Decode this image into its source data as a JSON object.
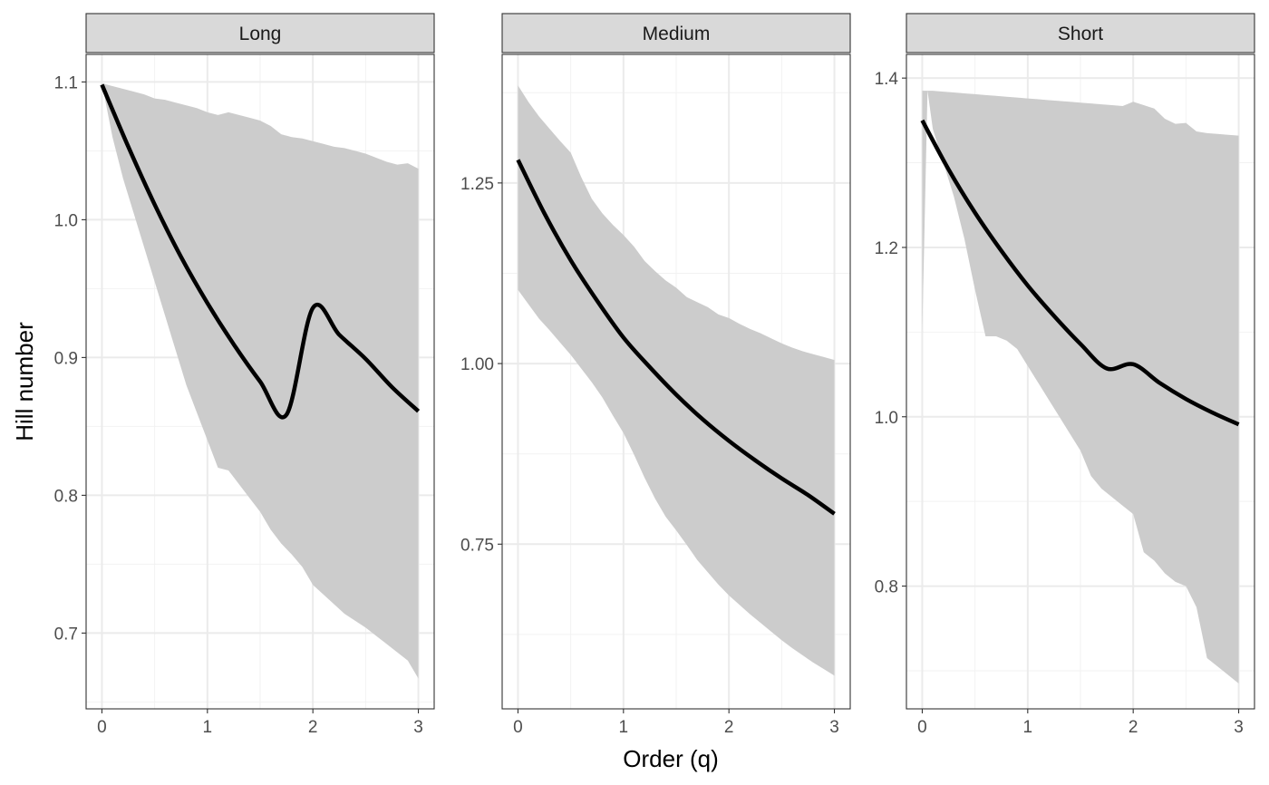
{
  "chart_data": {
    "type": "line",
    "xlabel": "Order (q)",
    "ylabel": "Hill number",
    "x_ticks": [
      0,
      1,
      2,
      3
    ],
    "xlim": [
      -0.15,
      3.15
    ],
    "colors": {
      "line": "#000000",
      "ribbon": "#cccccc",
      "grid_major": "#ebebeb",
      "grid_minor": "#f2f2f2",
      "strip_bg": "#d9d9d9",
      "border": "#333333"
    },
    "panels": [
      {
        "name": "Long",
        "ylim": [
          0.645,
          1.12
        ],
        "y_ticks": [
          0.7,
          0.8,
          0.9,
          1.0,
          1.1
        ],
        "y_tick_labels": [
          "0.7",
          "0.8",
          "0.9",
          "1.0",
          "1.1"
        ],
        "y_minor": [
          0.65,
          0.75,
          0.85,
          0.95,
          1.05
        ],
        "series": [
          {
            "name": "Hill number",
            "x": [
              0,
              0.25,
              0.5,
              0.75,
              1,
              1.25,
              1.5,
              1.75,
              2,
              2.25,
              2.5,
              2.75,
              3
            ],
            "y": [
              1.098,
              1.053,
              1.011,
              0.973,
              0.9395,
              0.9095,
              0.8825,
              0.8585,
              0.936,
              0.9165,
              0.899,
              0.8785,
              0.861
            ]
          }
        ],
        "ribbon": {
          "x": [
            0,
            0.1,
            0.2,
            0.3,
            0.4,
            0.5,
            0.6,
            0.7,
            0.8,
            0.9,
            1.0,
            1.1,
            1.2,
            1.3,
            1.4,
            1.5,
            1.6,
            1.7,
            1.8,
            1.9,
            2.0,
            2.1,
            2.2,
            2.3,
            2.4,
            2.5,
            2.6,
            2.7,
            2.8,
            2.9,
            3.0
          ],
          "upper": [
            1.099,
            1.097,
            1.095,
            1.093,
            1.091,
            1.088,
            1.087,
            1.085,
            1.083,
            1.081,
            1.078,
            1.076,
            1.078,
            1.076,
            1.074,
            1.072,
            1.068,
            1.062,
            1.06,
            1.059,
            1.057,
            1.055,
            1.053,
            1.052,
            1.05,
            1.048,
            1.045,
            1.042,
            1.04,
            1.041,
            1.037
          ],
          "lower": [
            1.099,
            1.06,
            1.03,
            1.005,
            0.98,
            0.955,
            0.93,
            0.905,
            0.88,
            0.86,
            0.84,
            0.82,
            0.818,
            0.808,
            0.798,
            0.788,
            0.775,
            0.765,
            0.757,
            0.748,
            0.735,
            0.728,
            0.721,
            0.714,
            0.709,
            0.704,
            0.698,
            0.692,
            0.686,
            0.68,
            0.667
          ]
        }
      },
      {
        "name": "Medium",
        "ylim": [
          0.522,
          1.428
        ],
        "y_ticks": [
          0.75,
          1.0,
          1.25
        ],
        "y_tick_labels": [
          "0.75",
          "1.00",
          "1.25"
        ],
        "y_minor": [
          0.625,
          0.875,
          1.125,
          1.375
        ],
        "series": [
          {
            "name": "Hill number",
            "x": [
              0,
              0.25,
              0.5,
              0.75,
              1,
              1.25,
              1.5,
              1.75,
              2,
              2.25,
              2.5,
              2.75,
              3
            ],
            "y": [
              1.282,
              1.208,
              1.143,
              1.087,
              1.036,
              0.995,
              0.957,
              0.923,
              0.893,
              0.866,
              0.841,
              0.818,
              0.792
            ]
          }
        ],
        "ribbon": {
          "x": [
            0,
            0.1,
            0.2,
            0.3,
            0.4,
            0.5,
            0.6,
            0.7,
            0.8,
            0.9,
            1.0,
            1.1,
            1.2,
            1.3,
            1.4,
            1.5,
            1.6,
            1.7,
            1.8,
            1.9,
            2.0,
            2.1,
            2.2,
            2.3,
            2.4,
            2.5,
            2.6,
            2.7,
            2.8,
            2.9,
            3.0
          ],
          "upper": [
            1.385,
            1.362,
            1.342,
            1.325,
            1.308,
            1.292,
            1.258,
            1.228,
            1.208,
            1.192,
            1.178,
            1.162,
            1.142,
            1.128,
            1.115,
            1.105,
            1.092,
            1.085,
            1.078,
            1.068,
            1.063,
            1.055,
            1.048,
            1.042,
            1.035,
            1.028,
            1.022,
            1.017,
            1.013,
            1.009,
            1.005
          ],
          "lower": [
            1.102,
            1.082,
            1.062,
            1.046,
            1.029,
            1.012,
            0.993,
            0.974,
            0.953,
            0.928,
            0.904,
            0.874,
            0.842,
            0.813,
            0.788,
            0.769,
            0.749,
            0.728,
            0.711,
            0.694,
            0.679,
            0.666,
            0.653,
            0.641,
            0.629,
            0.617,
            0.606,
            0.596,
            0.586,
            0.577,
            0.568
          ]
        }
      },
      {
        "name": "Short",
        "ylim": [
          0.655,
          1.428
        ],
        "y_ticks": [
          0.8,
          1.0,
          1.2,
          1.4
        ],
        "y_tick_labels": [
          "0.8",
          "1.0",
          "1.2",
          "1.4"
        ],
        "y_minor": [
          0.7,
          0.9,
          1.1,
          1.3
        ],
        "series": [
          {
            "name": "Hill number",
            "x": [
              0,
              0.25,
              0.5,
              0.75,
              1,
              1.25,
              1.5,
              1.75,
              2,
              2.25,
              2.5,
              2.75,
              3
            ],
            "y": [
              1.35,
              1.292,
              1.241,
              1.196,
              1.155,
              1.119,
              1.086,
              1.057,
              1.062,
              1.04,
              1.021,
              1.005,
              0.991
            ]
          }
        ],
        "ribbon": {
          "x": [
            0,
            0.05,
            0.1,
            0.2,
            0.3,
            0.4,
            0.5,
            0.6,
            0.7,
            0.8,
            0.9,
            1.0,
            1.1,
            1.2,
            1.3,
            1.4,
            1.5,
            1.6,
            1.7,
            1.8,
            1.9,
            2.0,
            2.1,
            2.2,
            2.3,
            2.4,
            2.5,
            2.6,
            2.7,
            2.8,
            2.9,
            3.0
          ],
          "upper": [
            1.385,
            1.385,
            1.385,
            1.384,
            1.383,
            1.382,
            1.381,
            1.38,
            1.379,
            1.378,
            1.377,
            1.376,
            1.375,
            1.374,
            1.373,
            1.372,
            1.371,
            1.37,
            1.369,
            1.368,
            1.367,
            1.372,
            1.368,
            1.364,
            1.352,
            1.346,
            1.347,
            1.337,
            1.335,
            1.334,
            1.333,
            1.332
          ],
          "lower": [
            1.1,
            1.385,
            1.34,
            1.3,
            1.26,
            1.21,
            1.15,
            1.095,
            1.095,
            1.09,
            1.08,
            1.06,
            1.04,
            1.02,
            1.0,
            0.98,
            0.96,
            0.93,
            0.915,
            0.905,
            0.895,
            0.885,
            0.84,
            0.83,
            0.815,
            0.805,
            0.8,
            0.775,
            0.715,
            0.705,
            0.695,
            0.685
          ]
        }
      }
    ]
  }
}
